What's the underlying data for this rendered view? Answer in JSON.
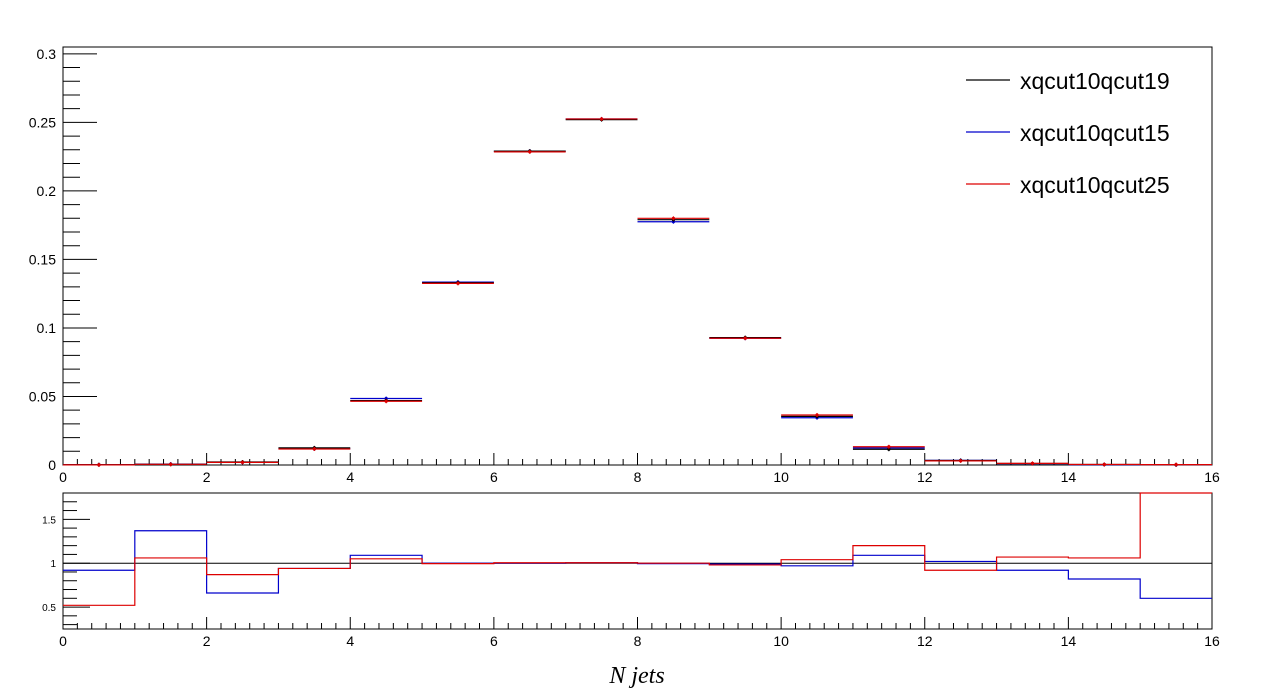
{
  "chart_data": [
    {
      "type": "histogram",
      "panel": "main",
      "title": "",
      "xlabel": "",
      "ylabel": "",
      "xlim": [
        0,
        16
      ],
      "ylim": [
        0,
        0.305
      ],
      "bin_edges": [
        0,
        1,
        2,
        3,
        4,
        5,
        6,
        7,
        8,
        9,
        10,
        11,
        12,
        13,
        14,
        15,
        16
      ],
      "x_ticks": [
        0,
        2,
        4,
        6,
        8,
        10,
        12,
        14,
        16
      ],
      "x_tick_labels": [
        "0",
        "2",
        "4",
        "6",
        "8",
        "10",
        "12",
        "14",
        "16"
      ],
      "y_ticks": [
        0,
        0.05,
        0.1,
        0.15,
        0.2,
        0.25,
        0.3
      ],
      "y_tick_labels": [
        "0",
        "0.05",
        "0.1",
        "0.15",
        "0.2",
        "0.25",
        "0.3"
      ],
      "grid": false,
      "legend_position": "top-right",
      "series": [
        {
          "name": "xqcut10qcut19",
          "color": "#000000",
          "values": [
            0.0002,
            0.0005,
            0.0022,
            0.0125,
            0.047,
            0.133,
            0.229,
            0.252,
            0.179,
            0.093,
            0.0355,
            0.0115,
            0.0033,
            0.0011,
            0.0004,
            0.0002
          ]
        },
        {
          "name": "xqcut10qcut15",
          "color": "#0000cc",
          "values": [
            0.0002,
            0.0007,
            0.0019,
            0.0118,
            0.0485,
            0.1335,
            0.229,
            0.2525,
            0.1775,
            0.0925,
            0.0345,
            0.0125,
            0.0034,
            0.001,
            0.0003,
            0.0001
          ]
        },
        {
          "name": "xqcut10qcut25",
          "color": "#dd0000",
          "values": [
            0.0001,
            0.0005,
            0.0019,
            0.0117,
            0.0465,
            0.1325,
            0.2285,
            0.2525,
            0.18,
            0.0925,
            0.0365,
            0.0133,
            0.003,
            0.0012,
            0.0004,
            0.0003
          ]
        }
      ]
    },
    {
      "type": "histogram",
      "panel": "ratio",
      "title": "",
      "xlabel": "N jets",
      "ylabel": "",
      "xlim": [
        0,
        16
      ],
      "ylim": [
        0.25,
        1.8
      ],
      "bin_edges": [
        0,
        1,
        2,
        3,
        4,
        5,
        6,
        7,
        8,
        9,
        10,
        11,
        12,
        13,
        14,
        15,
        16
      ],
      "x_ticks": [
        0,
        2,
        4,
        6,
        8,
        10,
        12,
        14,
        16
      ],
      "x_tick_labels": [
        "0",
        "2",
        "4",
        "6",
        "8",
        "10",
        "12",
        "14",
        "16"
      ],
      "y_ticks": [
        0.5,
        1,
        1.5
      ],
      "y_tick_labels": [
        "0.5",
        "1",
        "1.5"
      ],
      "reference_line": 1,
      "series": [
        {
          "name": "xqcut10qcut15",
          "color": "#0000cc",
          "values": [
            0.92,
            1.37,
            0.66,
            0.94,
            1.09,
            1.0,
            1.0,
            1.005,
            0.995,
            0.99,
            0.97,
            1.09,
            1.02,
            0.92,
            0.82,
            0.6
          ]
        },
        {
          "name": "xqcut10qcut25",
          "color": "#dd0000",
          "values": [
            0.52,
            1.06,
            0.87,
            0.94,
            1.05,
            0.995,
            1.005,
            1.005,
            1.0,
            0.98,
            1.04,
            1.2,
            0.92,
            1.07,
            1.06,
            1.8
          ]
        }
      ]
    }
  ]
}
